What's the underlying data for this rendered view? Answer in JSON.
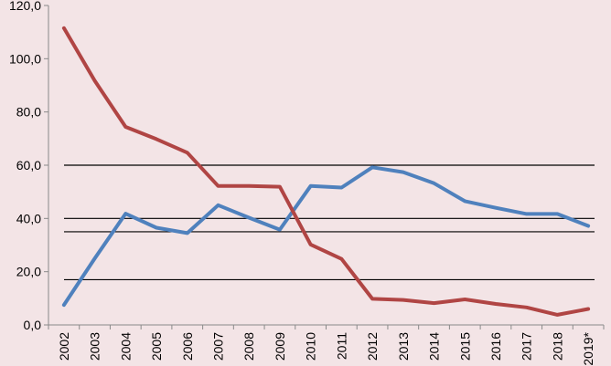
{
  "chart_data": {
    "type": "line",
    "title": "",
    "xlabel": "",
    "ylabel": "",
    "categories": [
      "2002",
      "2003",
      "2004",
      "2005",
      "2006",
      "2007",
      "2008",
      "2009",
      "2010",
      "2011",
      "2012",
      "2013",
      "2014",
      "2015",
      "2016",
      "2017",
      "2018",
      "2019*"
    ],
    "ylim": [
      0,
      120
    ],
    "yticks": [
      0,
      20,
      40,
      60,
      80,
      100,
      120
    ],
    "ytick_labels": [
      "0,0",
      "20,0",
      "40,0",
      "60,0",
      "80,0",
      "100,0",
      "120,0"
    ],
    "grid": false,
    "legend": "none",
    "reference_lines": [
      17.0,
      35.0,
      40.0,
      60.0
    ],
    "series": [
      {
        "color": "#4f81bd",
        "values": [
          7.5,
          25.0,
          41.8,
          36.5,
          34.5,
          45.0,
          40.3,
          35.8,
          52.2,
          51.6,
          59.2,
          57.4,
          53.2,
          46.5,
          44.0,
          41.7,
          41.7,
          37.2
        ]
      },
      {
        "color": "#b04544",
        "values": [
          111.5,
          91.7,
          74.4,
          69.8,
          64.7,
          52.2,
          52.2,
          51.9,
          30.2,
          24.8,
          9.8,
          9.4,
          8.2,
          9.6,
          7.9,
          6.6,
          3.8,
          6.0
        ]
      }
    ]
  }
}
